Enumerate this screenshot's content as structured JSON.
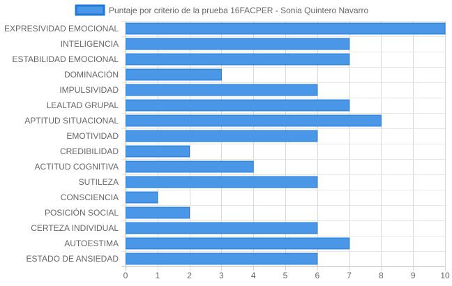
{
  "chart_data": {
    "type": "bar",
    "orientation": "horizontal",
    "categories": [
      "EXPRESIVIDAD EMOCIONAL",
      "INTELIGENCIA",
      "ESTABILIDAD EMOCIONAL",
      "DOMINACIÓN",
      "IMPULSIVIDAD",
      "LEALTAD GRUPAL",
      "APTITUD SITUACIONAL",
      "EMOTIVIDAD",
      "CREDIBILIDAD",
      "ACTITUD COGNITIVA",
      "SUTILEZA",
      "CONSCIENCIA",
      "POSICIÓN SOCIAL",
      "CERTEZA INDIVIDUAL",
      "AUTOESTIMA",
      "ESTADO DE ANSIEDAD"
    ],
    "series": [
      {
        "name": "Puntaje por criterio de la prueba 16FACPER - Sonia Quintero Navarro",
        "values": [
          10,
          7,
          7,
          3,
          6,
          7,
          8,
          6,
          2,
          4,
          6,
          1,
          2,
          6,
          7,
          6
        ],
        "color": "#4a97e8",
        "border_color": "#1e78d8"
      }
    ],
    "xlim": [
      0,
      10
    ],
    "x_ticks": [
      "0",
      "1",
      "2",
      "3",
      "4",
      "5",
      "6",
      "7",
      "8",
      "9",
      "10"
    ],
    "grid": true,
    "legend_position": "top"
  }
}
